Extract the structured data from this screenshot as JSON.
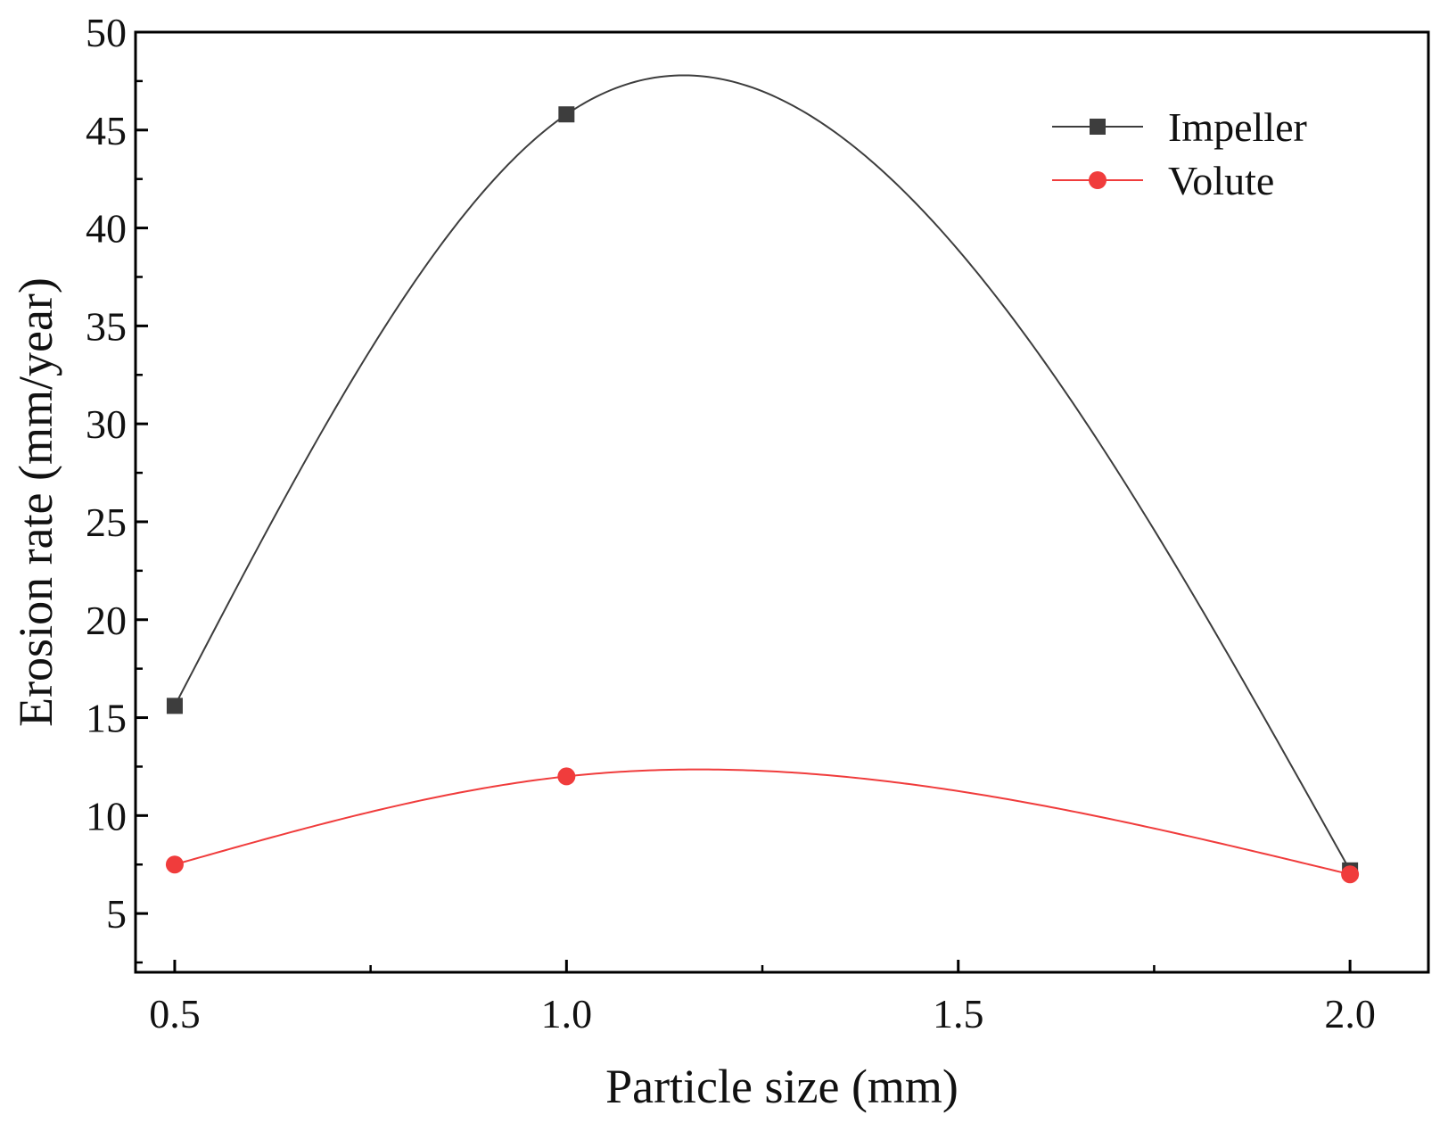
{
  "chart_data": {
    "type": "line",
    "title": "",
    "xlabel": "Particle size (mm)",
    "ylabel": "Erosion rate (mm/year)",
    "x": [
      0.5,
      1.0,
      2.0
    ],
    "xlim": [
      0.45,
      2.1
    ],
    "ylim": [
      2,
      50
    ],
    "xticks": [
      0.5,
      1.0,
      1.5,
      2.0
    ],
    "xtick_labels": [
      "0.5",
      "1.0",
      "1.5",
      "2.0"
    ],
    "yticks": [
      5,
      10,
      15,
      20,
      25,
      30,
      35,
      40,
      45,
      50
    ],
    "ytick_labels": [
      "5",
      "10",
      "15",
      "20",
      "25",
      "30",
      "35",
      "40",
      "45",
      "50"
    ],
    "grid": false,
    "legend_position": "top-right",
    "series": [
      {
        "name": "Impeller",
        "values": [
          15.6,
          45.8,
          7.2
        ],
        "color": "#3d3d3d",
        "marker": "square"
      },
      {
        "name": "Volute",
        "values": [
          7.5,
          12.0,
          7.0
        ],
        "color": "#f03c3c",
        "marker": "circle"
      }
    ]
  }
}
